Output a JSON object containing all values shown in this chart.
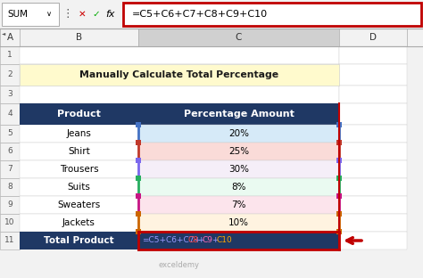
{
  "title": "Manually Calculate Total Percentage",
  "title_bg": "#FFFACD",
  "header_bg": "#1F3864",
  "header_fg": "#FFFFFF",
  "header_labels": [
    "Product",
    "Percentage Amount"
  ],
  "products": [
    "Jeans",
    "Shirt",
    "Trousers",
    "Suits",
    "Sweaters",
    "Jackets"
  ],
  "percentages": [
    "20%",
    "25%",
    "30%",
    "8%",
    "7%",
    "10%"
  ],
  "row_colors": [
    "#D6EAF8",
    "#FADBD8",
    "#F5EEF8",
    "#EAFAF1",
    "#FCE4EC",
    "#FFF3E0"
  ],
  "total_label": "Total Product",
  "total_value": "=C5+C6+C7+C8+C9+C10",
  "formula_bar_text": "=C5+C6+C7+C8+C9+C10",
  "col_labels": [
    "A",
    "B",
    "C",
    "D"
  ],
  "excel_bg": "#F2F2F2",
  "cell_border": "#CCCCCC",
  "formula_box_border": "#C00000",
  "arrow_color": "#C00000",
  "col_c_highlight": "#D0D0D0",
  "total_row_border": "#C00000",
  "row_border_colors": [
    "#4472C4",
    "#C0392B",
    "#7B68EE",
    "#27AE60",
    "#C71585",
    "#CC6600"
  ],
  "formula_bar_formula": "=C5+C6+C7+C8+C9+C10",
  "watermark": "exceldemy",
  "grid_line_color": "#AAAAAA",
  "white": "#FFFFFF"
}
